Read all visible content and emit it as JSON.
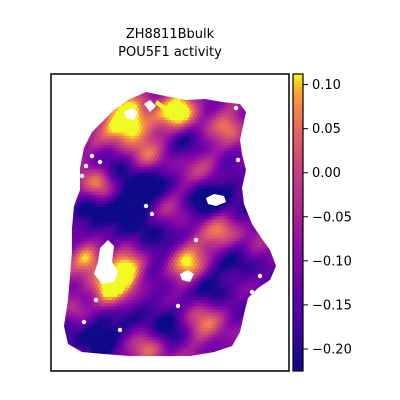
{
  "chart_data": {
    "type": "heatmap",
    "title_line1": "ZH8811Bbulk",
    "title_line2": "POU5F1 activity",
    "xlabel": "",
    "ylabel": "",
    "colormap": "plasma",
    "vmin": -0.225,
    "vmax": 0.112,
    "colorbar_ticks": [
      {
        "value": 0.1,
        "label": "0.10"
      },
      {
        "value": 0.05,
        "label": "0.05"
      },
      {
        "value": 0.0,
        "label": "0.00"
      },
      {
        "value": -0.05,
        "label": "−0.05"
      },
      {
        "value": -0.1,
        "label": "−0.10"
      },
      {
        "value": -0.15,
        "label": "−0.15"
      },
      {
        "value": -0.2,
        "label": "−0.20"
      }
    ],
    "grid": false,
    "spots": "hexagonal spatial transcriptomics spots colored by activity"
  }
}
